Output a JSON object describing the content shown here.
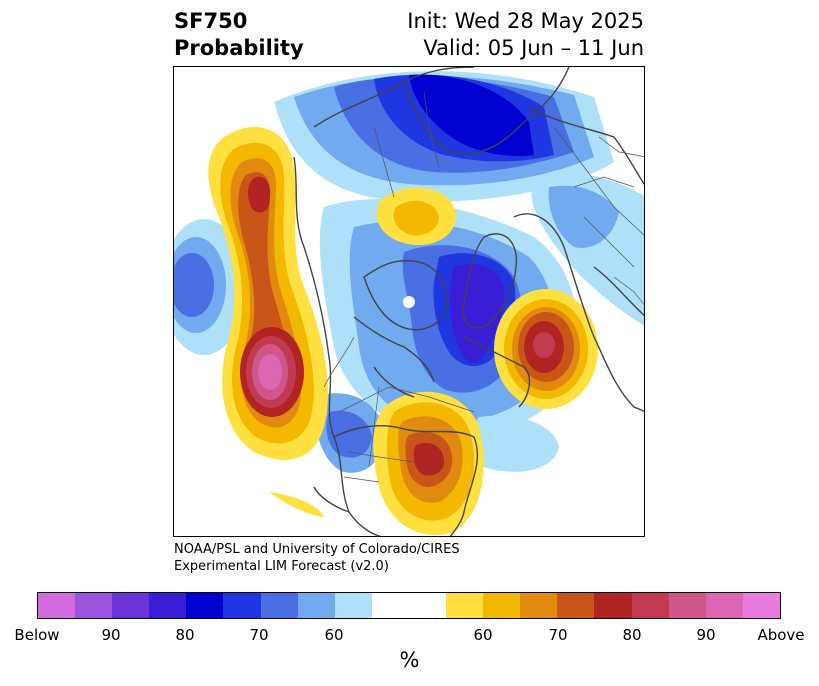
{
  "header": {
    "title_line1": "SF750",
    "title_line2": "Probability",
    "init": "Init: Wed 28 May 2025",
    "valid": "Valid: 05 Jun – 11 Jun"
  },
  "credit": {
    "line1": "NOAA/PSL and University of Colorado/CIRES",
    "line2": "Experimental LIM Forecast (v2.0)"
  },
  "colorbar": {
    "unit_label": "%",
    "tick_labels": [
      "Below",
      "90",
      "80",
      "70",
      "60",
      "60",
      "70",
      "80",
      "90",
      "Above"
    ],
    "colors": [
      "#d46ae0",
      "#9b55dd",
      "#6a34d6",
      "#3a1ed6",
      "#0000d0",
      "#2036e0",
      "#4a6fe2",
      "#72aaf0",
      "#aee0fa",
      "#ffffff",
      "#ffe040",
      "#f4b800",
      "#e08a10",
      "#c85618",
      "#b02424",
      "#c23a52",
      "#cf5688",
      "#dc66b4",
      "#e87ae0"
    ]
  },
  "map": {
    "projection": "polar-stereographic",
    "palette": {
      "blue_light": "#aee0fa",
      "blue_mid": "#72aaf0",
      "blue_dark": "#4a6fe2",
      "blue_deeper": "#2036e0",
      "blue_deepest": "#0000d0",
      "indigo": "#3a1ed6",
      "yellow": "#ffe040",
      "gold": "#f4b800",
      "orange": "#e08a10",
      "rust": "#c85618",
      "red": "#b02424",
      "rose": "#c23a52",
      "pink": "#cf5688",
      "magenta": "#dc66b4"
    }
  }
}
